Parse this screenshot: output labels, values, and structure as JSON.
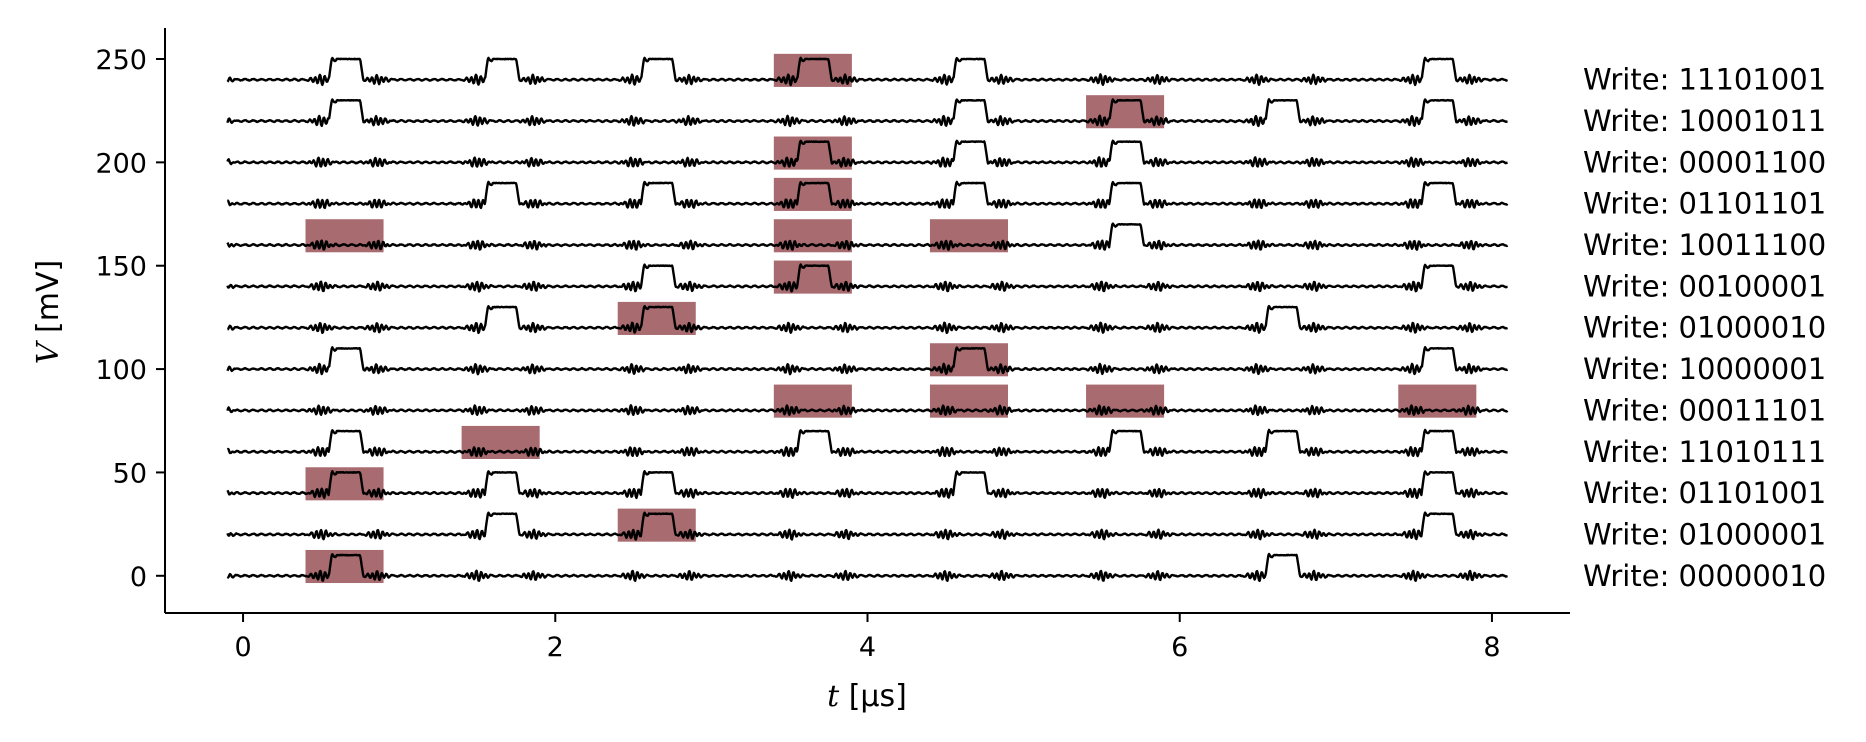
{
  "chart_data": {
    "type": "line",
    "xlabel": {
      "symbol": "t",
      "unit": " [μs]"
    },
    "ylabel": {
      "symbol": "V",
      "unit": " [mV]"
    },
    "xlim": [
      -0.5,
      8.5
    ],
    "ylim": [
      -18,
      265
    ],
    "xticks": [
      0,
      2,
      4,
      6,
      8
    ],
    "yticks": [
      0,
      50,
      100,
      150,
      200,
      250
    ],
    "grid": false,
    "bit_window_us": 1.0,
    "trace_x_range": [
      -0.1,
      8.1
    ],
    "pulse_amplitude_mV": 10,
    "highlight_color": "#a86b70",
    "trace_color": "#000000",
    "series": [
      {
        "offset_mV": 240,
        "label": "Write: 11101001",
        "pulses": [
          0,
          1,
          2,
          3,
          4,
          7
        ],
        "highlights": [
          3
        ]
      },
      {
        "offset_mV": 220,
        "label": "Write: 10001011",
        "pulses": [
          0,
          4,
          5,
          6,
          7
        ],
        "highlights": [
          5
        ]
      },
      {
        "offset_mV": 200,
        "label": "Write: 00001100",
        "pulses": [
          3,
          4,
          5
        ],
        "highlights": [
          3
        ]
      },
      {
        "offset_mV": 180,
        "label": "Write: 01101101",
        "pulses": [
          1,
          2,
          3,
          4,
          5,
          7
        ],
        "highlights": [
          3
        ]
      },
      {
        "offset_mV": 160,
        "label": "Write: 10011100",
        "pulses": [
          5
        ],
        "highlights": [
          0,
          3,
          4
        ]
      },
      {
        "offset_mV": 140,
        "label": "Write: 00100001",
        "pulses": [
          2,
          3,
          7
        ],
        "highlights": [
          3
        ]
      },
      {
        "offset_mV": 120,
        "label": "Write: 01000010",
        "pulses": [
          1,
          2,
          6
        ],
        "highlights": [
          2
        ]
      },
      {
        "offset_mV": 100,
        "label": "Write: 10000001",
        "pulses": [
          0,
          4,
          7
        ],
        "highlights": [
          4
        ]
      },
      {
        "offset_mV": 80,
        "label": "Write: 00011101",
        "pulses": [],
        "highlights": [
          3,
          4,
          5,
          7
        ]
      },
      {
        "offset_mV": 60,
        "label": "Write: 11010111",
        "pulses": [
          0,
          3,
          5,
          6,
          7
        ],
        "highlights": [
          1
        ]
      },
      {
        "offset_mV": 40,
        "label": "Write: 01101001",
        "pulses": [
          0,
          1,
          2,
          4,
          7
        ],
        "highlights": [
          0
        ]
      },
      {
        "offset_mV": 20,
        "label": "Write: 01000001",
        "pulses": [
          1,
          2,
          7
        ],
        "highlights": [
          2
        ]
      },
      {
        "offset_mV": 0,
        "label": "Write: 00000010",
        "pulses": [
          0,
          6
        ],
        "highlights": [
          0
        ]
      }
    ]
  }
}
